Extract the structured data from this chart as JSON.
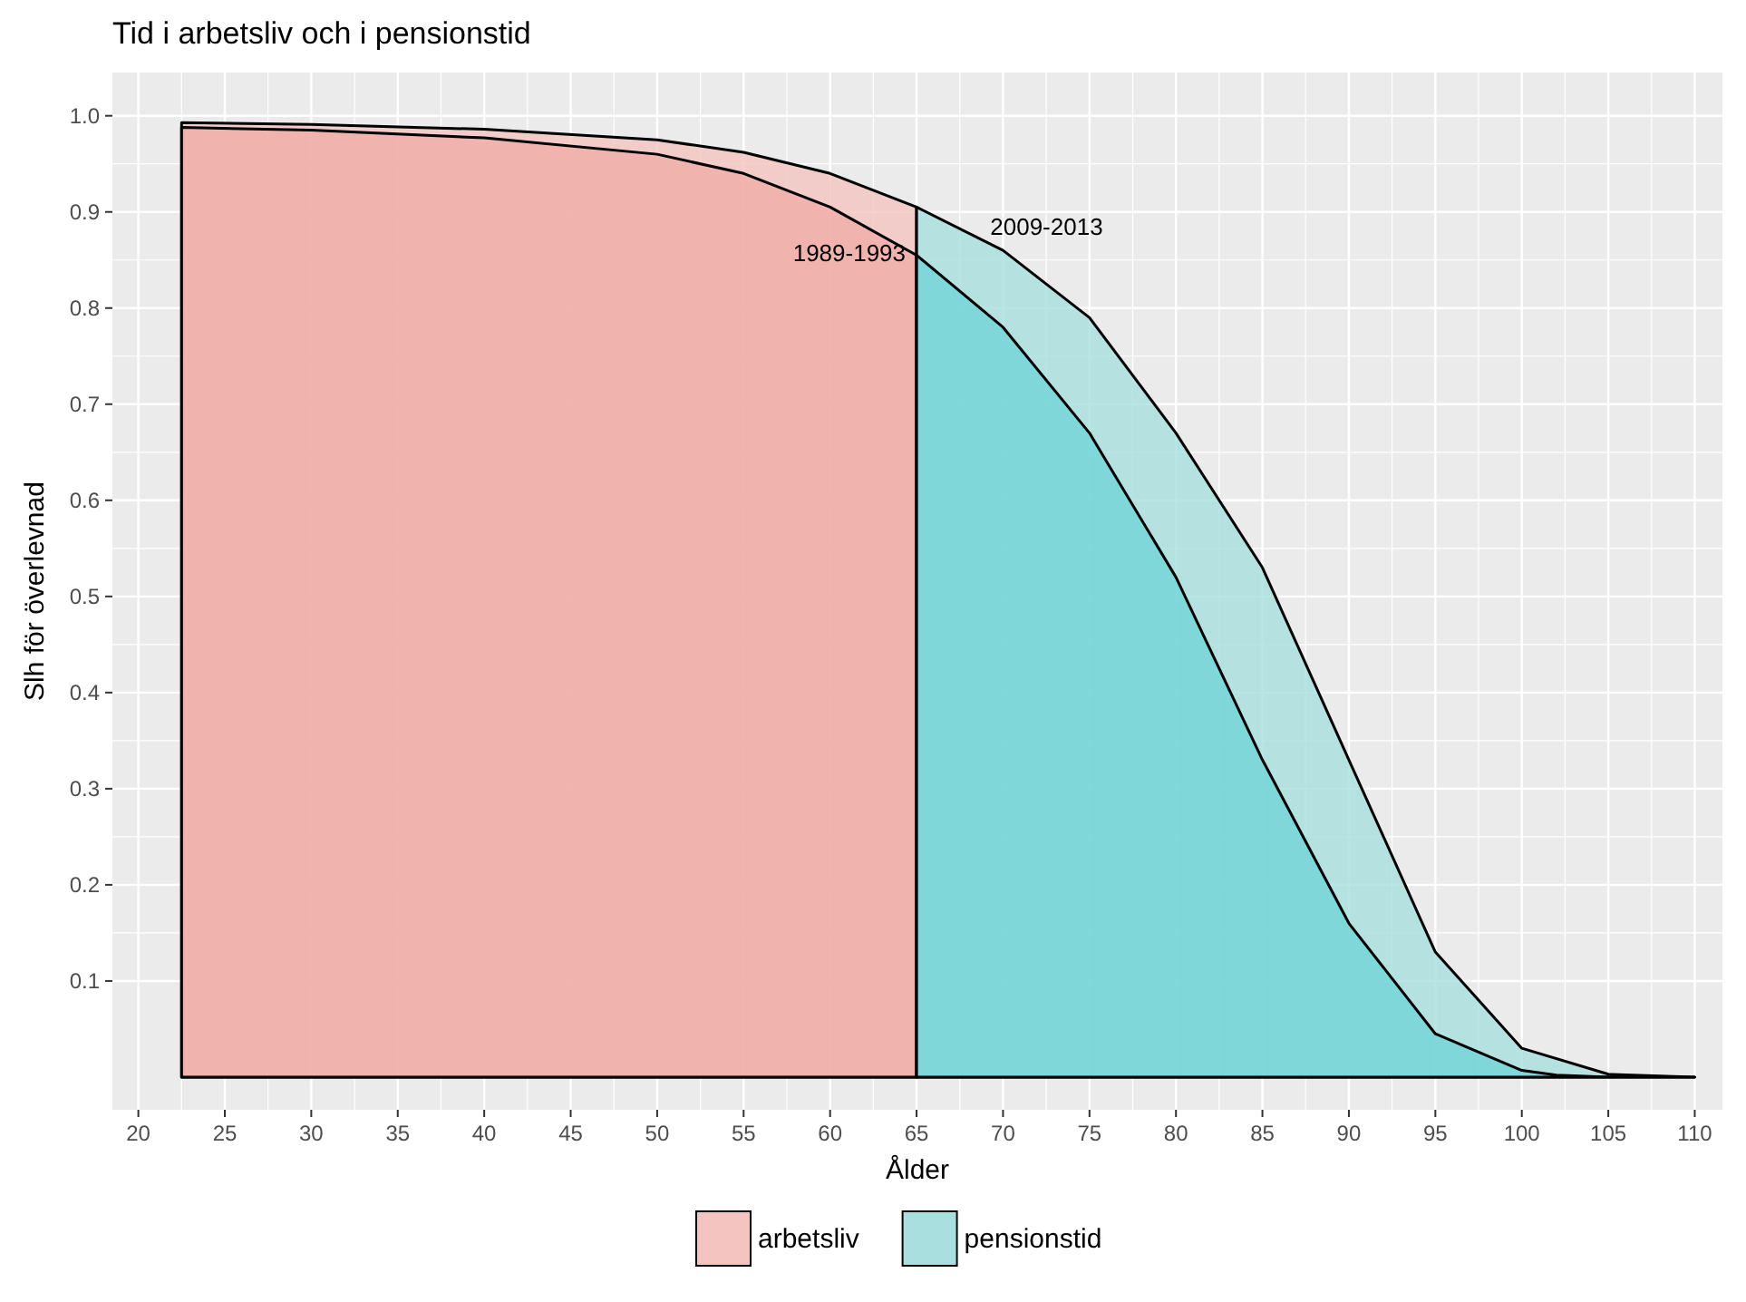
{
  "chart_data": {
    "type": "area",
    "title": "Tid i arbetsliv och i pensionstid",
    "xlabel": "Ålder",
    "ylabel": "Slh för överlevnad",
    "xlim": [
      18.5,
      111.6
    ],
    "ylim": [
      -0.034,
      1.045
    ],
    "xticks": [
      20,
      25,
      30,
      35,
      40,
      45,
      50,
      55,
      60,
      65,
      70,
      75,
      80,
      85,
      90,
      95,
      100,
      105,
      110
    ],
    "yticks": [
      0.1,
      0.2,
      0.3,
      0.4,
      0.5,
      0.6,
      0.7,
      0.8,
      0.9,
      {
        "value": 1,
        "label": "1.0"
      }
    ],
    "grid": true,
    "legend": "bottom",
    "series": [
      {
        "name": "arbetsliv",
        "color": "#f4c4c1",
        "x": [
          22.5,
          30,
          40,
          50,
          55,
          60,
          65
        ],
        "values": [
          0.993,
          0.991,
          0.986,
          0.975,
          0.962,
          0.94,
          0.905
        ]
      },
      {
        "color": "#f0aca8",
        "x": [
          22.5,
          30,
          40,
          50,
          55,
          60,
          65
        ],
        "values": [
          0.988,
          0.985,
          0.977,
          0.96,
          0.94,
          0.905,
          0.855
        ]
      },
      {
        "name": "pensionstid",
        "color": "#a9dfdf",
        "x": [
          65,
          70,
          75,
          80,
          85,
          90,
          95,
          100,
          105,
          110
        ],
        "values": [
          0.905,
          0.86,
          0.79,
          0.67,
          0.53,
          0.33,
          0.13,
          0.03,
          0.003,
          0
        ]
      },
      {
        "color": "#72d5d8",
        "x": [
          65,
          70,
          75,
          80,
          85,
          90,
          95,
          100,
          102,
          105,
          110
        ],
        "values": [
          0.855,
          0.78,
          0.67,
          0.52,
          0.33,
          0.16,
          0.045,
          0.007,
          0.002,
          0,
          0
        ]
      }
    ],
    "annotations": [
      {
        "text": "2009-2013",
        "x": 70,
        "y": 0.86
      },
      {
        "text": "1989-1993",
        "x": 65,
        "y": 0.855
      }
    ]
  }
}
